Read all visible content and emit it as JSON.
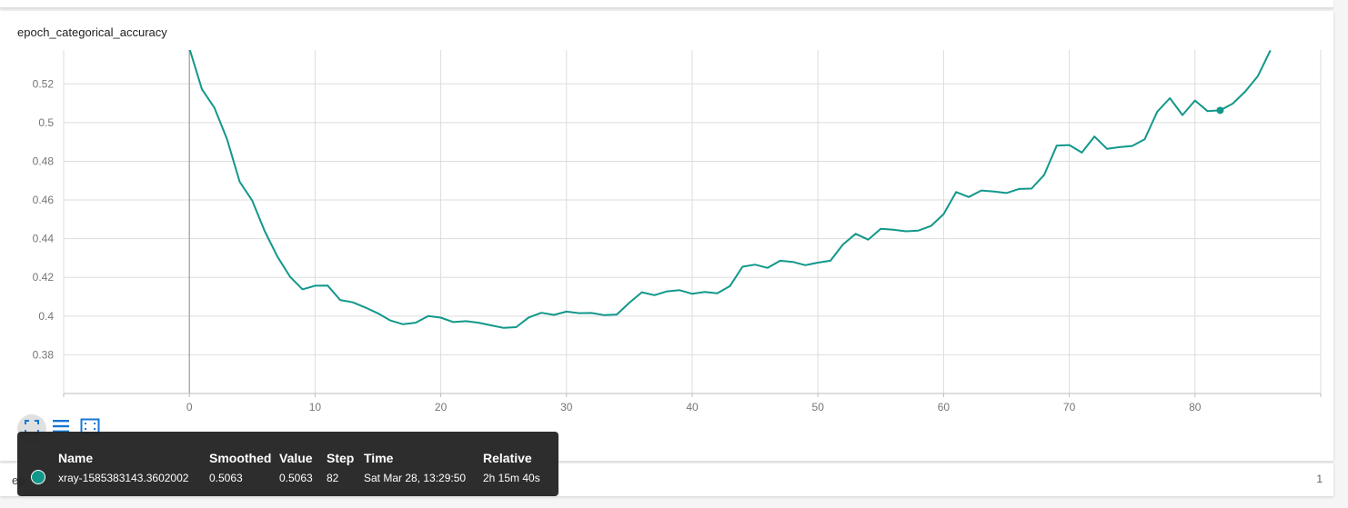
{
  "chart_data": {
    "type": "line",
    "title": "epoch_categorical_accuracy",
    "xlabel": "",
    "ylabel": "",
    "xlim": [
      -10,
      90
    ],
    "ylim": [
      0.36,
      0.5375
    ],
    "x_ticks": [
      0,
      10,
      20,
      30,
      40,
      50,
      60,
      70,
      80
    ],
    "x_tick_labels": [
      "0",
      "10",
      "20",
      "30",
      "40",
      "50",
      "60",
      "70",
      "80"
    ],
    "y_ticks": [
      0.38,
      0.4,
      0.42,
      0.44,
      0.46,
      0.48,
      0.5,
      0.52
    ],
    "y_tick_labels": [
      "0.38",
      "0.4",
      "0.42",
      "0.44",
      "0.46",
      "0.48",
      "0.5",
      "0.52"
    ],
    "grid": true,
    "series": [
      {
        "name": "xray-1585383143.3602002",
        "color": "#12988a",
        "x": [
          0,
          1,
          2,
          3,
          4,
          5,
          6,
          7,
          8,
          9,
          10,
          11,
          12,
          13,
          14,
          15,
          16,
          17,
          18,
          19,
          20,
          21,
          22,
          23,
          24,
          25,
          26,
          27,
          28,
          29,
          30,
          31,
          32,
          33,
          34,
          35,
          36,
          37,
          38,
          39,
          40,
          41,
          42,
          43,
          44,
          45,
          46,
          47,
          48,
          49,
          50,
          51,
          52,
          53,
          54,
          55,
          56,
          57,
          58,
          59,
          60,
          61,
          62,
          63,
          64,
          65,
          66,
          67,
          68,
          69,
          70,
          71,
          72,
          73,
          74,
          75,
          76,
          77,
          78,
          79,
          80,
          81,
          82,
          83,
          84,
          85,
          86
        ],
        "y": [
          0.5384,
          0.5172,
          0.5076,
          0.4913,
          0.4694,
          0.4597,
          0.4438,
          0.4308,
          0.4204,
          0.4138,
          0.4157,
          0.4158,
          0.4083,
          0.4071,
          0.4044,
          0.4014,
          0.3977,
          0.3958,
          0.3966,
          0.4,
          0.3992,
          0.3969,
          0.3974,
          0.3966,
          0.3952,
          0.3939,
          0.3943,
          0.3993,
          0.4017,
          0.4006,
          0.4023,
          0.4015,
          0.4016,
          0.4005,
          0.4008,
          0.4069,
          0.4123,
          0.4108,
          0.4128,
          0.4134,
          0.4115,
          0.4125,
          0.4118,
          0.4155,
          0.4255,
          0.4266,
          0.4249,
          0.4286,
          0.428,
          0.4263,
          0.4276,
          0.4286,
          0.437,
          0.4425,
          0.4395,
          0.4451,
          0.4446,
          0.4438,
          0.4442,
          0.4466,
          0.4527,
          0.4641,
          0.4615,
          0.4649,
          0.4644,
          0.4636,
          0.4657,
          0.4659,
          0.473,
          0.4881,
          0.4884,
          0.4845,
          0.4928,
          0.4864,
          0.4873,
          0.4879,
          0.4914,
          0.5056,
          0.5126,
          0.5039,
          0.5114,
          0.5059,
          0.5063,
          0.5098,
          0.5161,
          0.524,
          0.5373
        ]
      }
    ],
    "highlight": {
      "x": 82,
      "y": 0.5063
    }
  },
  "toolbar": {
    "fit_icon": "fullscreen-corners-icon",
    "list_icon": "list-lines-icon",
    "fit_domain_icon": "fit-domain-icon",
    "accent": "#1976d2"
  },
  "tooltip": {
    "headers": {
      "name": "Name",
      "smoothed": "Smoothed",
      "value": "Value",
      "step": "Step",
      "time": "Time",
      "relative": "Relative"
    },
    "row": {
      "color": "#12988a",
      "name": "xray-1585383143.3602002",
      "smoothed": "0.5063",
      "value": "0.5063",
      "step": "82",
      "time": "Sat Mar 28, 13:29:50",
      "relative": "2h 15m 40s"
    }
  },
  "next_card": {
    "title_peek": "ep",
    "count": "1"
  }
}
